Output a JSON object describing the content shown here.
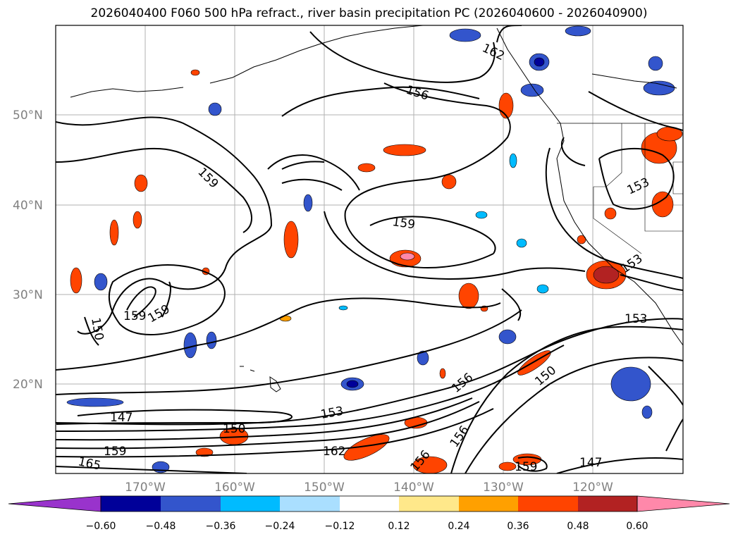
{
  "title": "2026040400 F060 500 hPa refract., river basin precipitation PC (2026040600 - 2026040900)",
  "lat_labels": [
    "50°N",
    "40°N",
    "30°N",
    "20°N"
  ],
  "lon_labels": [
    "170°W",
    "160°W",
    "150°W",
    "140°W",
    "130°W",
    "120°W"
  ],
  "contour_labels": [
    "162",
    "156",
    "159",
    "153",
    "159",
    "153",
    "159",
    "159",
    "150",
    "153",
    "147",
    "150",
    "153",
    "156",
    "150",
    "159",
    "162",
    "165",
    "156",
    "156",
    "159",
    "147"
  ],
  "colorbar": {
    "ticks": [
      "−0.60",
      "−0.48",
      "−0.36",
      "−0.24",
      "−0.12",
      "0.12",
      "0.24",
      "0.36",
      "0.48",
      "0.60"
    ],
    "colors": [
      "#9933cc",
      "#000099",
      "#3355cc",
      "#00bbff",
      "#aadfff",
      "#ffffff",
      "#ffe88a",
      "#ffa000",
      "#ff4400",
      "#b22222",
      "#ff88aa"
    ]
  }
}
